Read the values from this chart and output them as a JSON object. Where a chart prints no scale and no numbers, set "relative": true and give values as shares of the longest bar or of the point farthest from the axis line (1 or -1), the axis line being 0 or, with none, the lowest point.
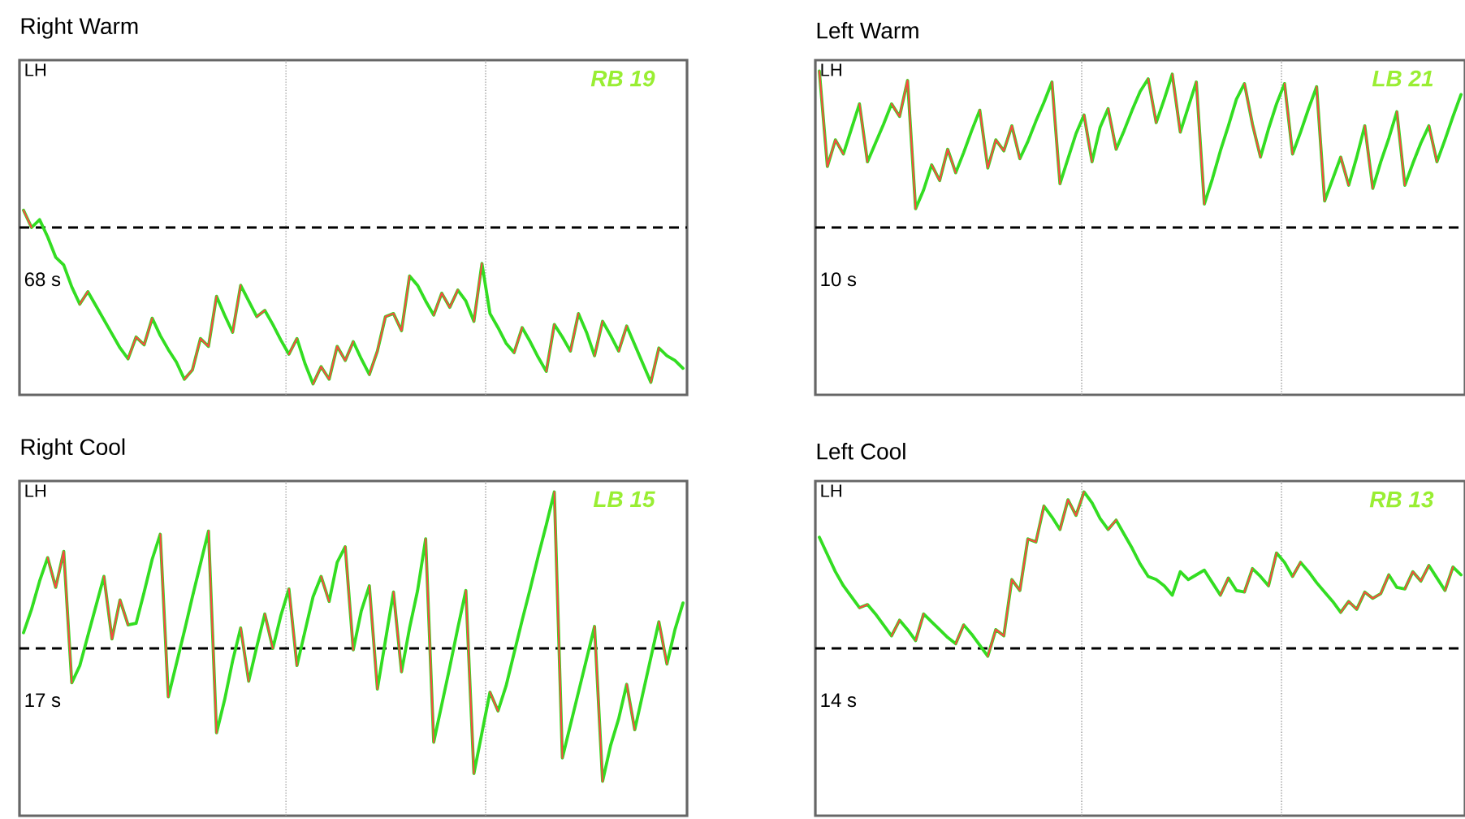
{
  "chart_data": [
    {
      "type": "line",
      "title": "Right Warm",
      "annotations": [
        "LH",
        "RB 19",
        "68 s"
      ],
      "relative": true,
      "categories": [
        null,
        null,
        null,
        null,
        null,
        null,
        null,
        null,
        null,
        null,
        null,
        null,
        null,
        null,
        null,
        null,
        null,
        null,
        null,
        null,
        null,
        null,
        null,
        null,
        null,
        null,
        null,
        null,
        null,
        null,
        null,
        null,
        null,
        null,
        null,
        null,
        null,
        null,
        null,
        null,
        null,
        null,
        null,
        null,
        null,
        null,
        null,
        null,
        null,
        null,
        null,
        null,
        null,
        null,
        null,
        null,
        null,
        null,
        null,
        null,
        null,
        null,
        null,
        null,
        null,
        null,
        null,
        null,
        null,
        null,
        null,
        null,
        null,
        null,
        null,
        null,
        null,
        null,
        null,
        null,
        null,
        null,
        null
      ],
      "ref_lines": [
        {
          "axis": "y",
          "value": 0,
          "color": "#000000",
          "line_style": "dashed"
        }
      ],
      "series": [
        {
          "color": "#33dd22",
          "values": [
            0.11,
            0,
            0.05,
            -0.06,
            -0.19,
            -0.24,
            -0.38,
            -0.49,
            -0.41,
            -0.5,
            -0.59,
            -0.68,
            -0.77,
            -0.84,
            -0.7,
            -0.75,
            -0.58,
            -0.69,
            -0.78,
            -0.86,
            -0.97,
            -0.91,
            -0.71,
            -0.76,
            -0.44,
            -0.56,
            -0.67,
            -0.37,
            -0.47,
            -0.57,
            -0.53,
            -0.62,
            -0.72,
            -0.81,
            -0.71,
            -0.87,
            -1.0,
            -0.89,
            -0.97,
            -0.76,
            -0.85,
            -0.73,
            -0.84,
            -0.94,
            -0.79,
            -0.57,
            -0.55,
            -0.66,
            -0.31,
            -0.37,
            -0.47,
            -0.56,
            -0.42,
            -0.51,
            -0.4,
            -0.47,
            -0.6,
            -0.23,
            -0.55,
            -0.64,
            -0.74,
            -0.8,
            -0.64,
            -0.73,
            -0.83,
            -0.92,
            -0.62,
            -0.7,
            -0.79,
            -0.55,
            -0.67,
            -0.82,
            -0.6,
            -0.69,
            -0.79,
            -0.63,
            -0.75,
            -0.87,
            -0.99,
            -0.77,
            -0.82,
            -0.85,
            -0.9
          ]
        },
        {
          "color": "#ff4444",
          "values": [
            0.11,
            0,
            null,
            null,
            null,
            null,
            null,
            -0.49,
            -0.41,
            null,
            null,
            null,
            null,
            -0.84,
            -0.7,
            -0.75,
            -0.58,
            null,
            null,
            null,
            -0.97,
            -0.91,
            -0.71,
            -0.76,
            -0.44,
            null,
            -0.67,
            -0.37,
            null,
            -0.57,
            -0.53,
            null,
            null,
            -0.81,
            -0.71,
            null,
            -1.0,
            -0.89,
            -0.97,
            -0.76,
            -0.85,
            -0.73,
            null,
            -0.94,
            -0.79,
            -0.57,
            -0.55,
            -0.66,
            -0.31,
            null,
            null,
            -0.56,
            -0.42,
            -0.51,
            -0.4,
            null,
            -0.6,
            -0.23,
            null,
            null,
            null,
            -0.8,
            -0.64,
            null,
            null,
            -0.92,
            -0.62,
            null,
            -0.79,
            -0.55,
            null,
            -0.82,
            -0.6,
            null,
            -0.79,
            -0.63,
            null,
            null,
            -0.99,
            -0.77,
            null,
            null,
            null
          ]
        }
      ]
    },
    {
      "type": "line",
      "title": "Left Warm",
      "annotations": [
        "LH",
        "LB 21",
        "10 s"
      ],
      "relative": true,
      "categories": [
        null,
        null,
        null,
        null,
        null,
        null,
        null,
        null,
        null,
        null,
        null,
        null,
        null,
        null,
        null,
        null,
        null,
        null,
        null,
        null,
        null,
        null,
        null,
        null,
        null,
        null,
        null,
        null,
        null,
        null,
        null,
        null,
        null,
        null,
        null,
        null,
        null,
        null,
        null,
        null,
        null,
        null,
        null,
        null,
        null,
        null,
        null,
        null,
        null,
        null,
        null,
        null,
        null,
        null,
        null,
        null,
        null,
        null,
        null,
        null,
        null,
        null,
        null,
        null,
        null,
        null,
        null,
        null,
        null,
        null,
        null,
        null,
        null,
        null,
        null,
        null,
        null,
        null,
        null,
        null,
        null
      ],
      "ref_lines": [
        {
          "axis": "y",
          "value": 0,
          "color": "#000000",
          "line_style": "dashed"
        }
      ],
      "series": [
        {
          "color": "#33dd22",
          "values": [
            1.0,
            0.39,
            0.56,
            0.47,
            0.63,
            0.79,
            0.42,
            0.54,
            0.66,
            0.79,
            0.71,
            0.94,
            0.12,
            0.24,
            0.4,
            0.3,
            0.5,
            0.35,
            0.48,
            0.62,
            0.75,
            0.38,
            0.56,
            0.49,
            0.65,
            0.44,
            0.55,
            0.68,
            0.8,
            0.93,
            0.28,
            0.44,
            0.6,
            0.72,
            0.42,
            0.64,
            0.76,
            0.5,
            0.62,
            0.75,
            0.87,
            0.95,
            0.67,
            0.82,
            0.98,
            0.61,
            0.77,
            0.93,
            0.15,
            0.31,
            0.49,
            0.65,
            0.82,
            0.92,
            0.66,
            0.45,
            0.63,
            0.79,
            0.92,
            0.47,
            0.61,
            0.76,
            0.9,
            0.17,
            0.31,
            0.45,
            0.27,
            0.45,
            0.65,
            0.25,
            0.42,
            0.57,
            0.74,
            0.27,
            0.41,
            0.54,
            0.65,
            0.42,
            0.56,
            0.71,
            0.85
          ]
        },
        {
          "color": "#ff4444",
          "values": [
            1.0,
            0.39,
            0.56,
            0.47,
            null,
            0.79,
            0.42,
            null,
            null,
            0.79,
            0.71,
            0.94,
            0.12,
            null,
            0.4,
            0.3,
            0.5,
            0.35,
            null,
            null,
            0.75,
            0.38,
            0.56,
            0.49,
            0.65,
            0.44,
            null,
            null,
            null,
            0.93,
            0.28,
            null,
            null,
            0.72,
            0.42,
            null,
            0.76,
            0.5,
            null,
            null,
            null,
            0.95,
            0.67,
            null,
            0.98,
            0.61,
            null,
            0.93,
            0.15,
            null,
            null,
            null,
            null,
            0.92,
            0.66,
            0.45,
            null,
            null,
            0.92,
            0.47,
            null,
            null,
            0.9,
            0.17,
            null,
            0.45,
            0.27,
            null,
            0.65,
            0.25,
            null,
            null,
            0.74,
            0.27,
            null,
            null,
            0.65,
            0.42,
            null,
            null,
            null
          ]
        }
      ]
    },
    {
      "type": "line",
      "title": "Right Cool",
      "annotations": [
        "LH",
        "LB 15",
        "17 s"
      ],
      "relative": true,
      "categories": [
        null,
        null,
        null,
        null,
        null,
        null,
        null,
        null,
        null,
        null,
        null,
        null,
        null,
        null,
        null,
        null,
        null,
        null,
        null,
        null,
        null,
        null,
        null,
        null,
        null,
        null,
        null,
        null,
        null,
        null,
        null,
        null,
        null,
        null,
        null,
        null,
        null,
        null,
        null,
        null,
        null,
        null,
        null,
        null,
        null,
        null,
        null,
        null,
        null,
        null,
        null,
        null,
        null,
        null,
        null,
        null,
        null,
        null,
        null,
        null,
        null,
        null,
        null,
        null,
        null,
        null,
        null,
        null,
        null,
        null,
        null,
        null,
        null,
        null,
        null,
        null,
        null,
        null,
        null,
        null,
        null,
        null,
        null
      ],
      "ref_lines": [
        {
          "axis": "y",
          "value": 0,
          "color": "#000000",
          "line_style": "dashed"
        }
      ],
      "series": [
        {
          "color": "#33dd22",
          "values": [
            0.1,
            0.25,
            0.43,
            0.58,
            0.39,
            0.62,
            -0.22,
            -0.11,
            0.08,
            0.27,
            0.46,
            0.06,
            0.31,
            0.15,
            0.16,
            0.36,
            0.57,
            0.73,
            -0.31,
            -0.1,
            0.11,
            0.33,
            0.54,
            0.75,
            -0.54,
            -0.33,
            -0.08,
            0.13,
            -0.21,
            0.01,
            0.22,
            0,
            0.21,
            0.38,
            -0.11,
            0.11,
            0.33,
            0.46,
            0.3,
            0.55,
            0.65,
            -0.01,
            0.24,
            0.4,
            -0.26,
            0.05,
            0.36,
            -0.15,
            0.13,
            0.37,
            0.7,
            -0.6,
            -0.36,
            -0.12,
            0.13,
            0.37,
            -0.8,
            -0.54,
            -0.28,
            -0.4,
            -0.24,
            -0.03,
            0.18,
            0.38,
            0.59,
            0.79,
            1.0,
            -0.7,
            -0.49,
            -0.28,
            -0.07,
            0.14,
            -0.85,
            -0.62,
            -0.45,
            -0.23,
            -0.52,
            -0.29,
            -0.06,
            0.17,
            -0.1,
            0.12,
            0.29
          ]
        },
        {
          "color": "#ff4444",
          "values": [
            null,
            null,
            null,
            0.58,
            0.39,
            0.62,
            -0.22,
            null,
            null,
            null,
            0.46,
            0.06,
            0.31,
            0.15,
            null,
            null,
            null,
            0.73,
            -0.31,
            null,
            null,
            null,
            null,
            0.75,
            -0.54,
            null,
            null,
            0.13,
            -0.21,
            null,
            0.22,
            0,
            null,
            0.38,
            -0.11,
            null,
            null,
            0.46,
            0.3,
            null,
            0.65,
            -0.01,
            null,
            0.4,
            -0.26,
            null,
            0.36,
            -0.15,
            null,
            null,
            0.7,
            -0.6,
            null,
            null,
            null,
            0.37,
            -0.8,
            null,
            -0.28,
            -0.4,
            null,
            null,
            null,
            null,
            null,
            null,
            1.0,
            -0.7,
            null,
            null,
            null,
            0.14,
            -0.85,
            null,
            null,
            -0.23,
            -0.52,
            null,
            null,
            0.17,
            -0.1,
            null,
            null
          ]
        }
      ]
    },
    {
      "type": "line",
      "title": "Left Cool",
      "annotations": [
        "LH",
        "RB 13",
        "14 s"
      ],
      "relative": true,
      "categories": [
        null,
        null,
        null,
        null,
        null,
        null,
        null,
        null,
        null,
        null,
        null,
        null,
        null,
        null,
        null,
        null,
        null,
        null,
        null,
        null,
        null,
        null,
        null,
        null,
        null,
        null,
        null,
        null,
        null,
        null,
        null,
        null,
        null,
        null,
        null,
        null,
        null,
        null,
        null,
        null,
        null,
        null,
        null,
        null,
        null,
        null,
        null,
        null,
        null,
        null,
        null,
        null,
        null,
        null,
        null,
        null,
        null,
        null,
        null,
        null,
        null,
        null,
        null,
        null,
        null,
        null,
        null,
        null,
        null,
        null,
        null,
        null,
        null,
        null,
        null,
        null,
        null,
        null,
        null,
        null,
        null
      ],
      "ref_lines": [
        {
          "axis": "y",
          "value": 0,
          "color": "#000000",
          "line_style": "dashed"
        }
      ],
      "series": [
        {
          "color": "#33dd22",
          "values": [
            0.71,
            0.6,
            0.49,
            0.4,
            0.33,
            0.26,
            0.28,
            0.22,
            0.15,
            0.08,
            0.18,
            0.12,
            0.05,
            0.22,
            0.17,
            0.12,
            0.07,
            0.03,
            0.15,
            0.09,
            0.02,
            -0.05,
            0.12,
            0.08,
            0.44,
            0.37,
            0.7,
            0.68,
            0.91,
            0.84,
            0.76,
            0.95,
            0.85,
            1.0,
            0.93,
            0.83,
            0.76,
            0.82,
            0.73,
            0.64,
            0.54,
            0.46,
            0.44,
            0.4,
            0.34,
            0.49,
            0.44,
            0.47,
            0.5,
            0.42,
            0.34,
            0.45,
            0.37,
            0.36,
            0.51,
            0.46,
            0.4,
            0.61,
            0.55,
            0.46,
            0.55,
            0.49,
            0.42,
            0.36,
            0.3,
            0.23,
            0.3,
            0.25,
            0.36,
            0.32,
            0.35,
            0.47,
            0.39,
            0.38,
            0.49,
            0.43,
            0.53,
            0.45,
            0.37,
            0.52,
            0.47
          ]
        },
        {
          "color": "#ff4444",
          "values": [
            null,
            null,
            null,
            null,
            null,
            0.26,
            0.28,
            null,
            null,
            0.08,
            0.18,
            null,
            0.05,
            0.22,
            null,
            null,
            null,
            0.03,
            0.15,
            null,
            null,
            -0.05,
            0.12,
            0.08,
            0.44,
            0.37,
            0.7,
            0.68,
            0.91,
            null,
            0.76,
            0.95,
            0.85,
            1.0,
            null,
            null,
            0.76,
            0.82,
            null,
            null,
            null,
            null,
            null,
            null,
            null,
            null,
            null,
            null,
            null,
            null,
            0.34,
            0.45,
            null,
            0.36,
            0.51,
            null,
            0.4,
            0.61,
            null,
            0.46,
            0.55,
            null,
            null,
            null,
            null,
            0.23,
            0.3,
            0.25,
            0.36,
            0.32,
            0.35,
            0.47,
            null,
            0.38,
            0.49,
            0.43,
            0.53,
            null,
            0.37,
            0.52,
            null
          ]
        }
      ]
    }
  ]
}
